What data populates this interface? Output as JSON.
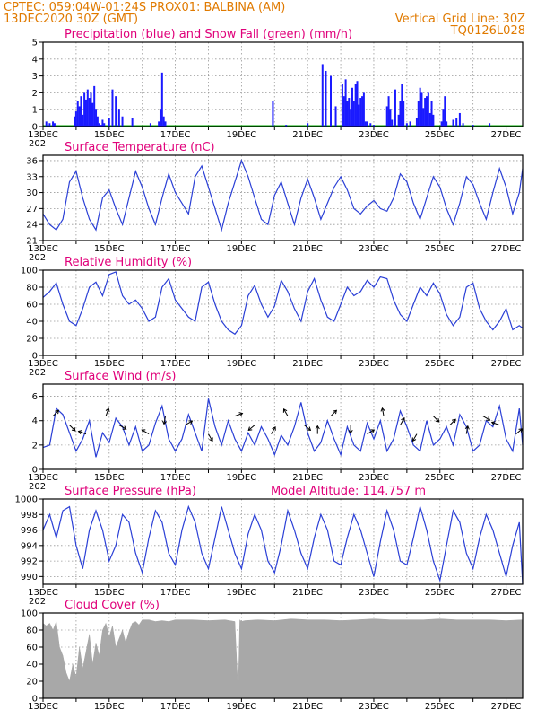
{
  "header": {
    "line1_left": "CPTEC:   059:04W-01:24S   PROX01: BALBINA (AM)",
    "line2_left": "13DEC2020 30Z (GMT)",
    "line2_right": "Vertical Grid Line: 30Z",
    "line3_right": "TQ0126L028"
  },
  "colors": {
    "header": "#e07a00",
    "title": "#e0007a",
    "precip": "#1a1aff",
    "snow": "#00aa00",
    "line": "#2a3fd6",
    "cloud": "#a8a8a8"
  },
  "x_axis": {
    "labels": [
      "13DEC",
      "15DEC",
      "17DEC",
      "19DEC",
      "21DEC",
      "23DEC",
      "25DEC",
      "27DEC"
    ],
    "label_positions_day": [
      0,
      2,
      4,
      6,
      8,
      10,
      12,
      14
    ],
    "stub": "202"
  },
  "chart_data": [
    {
      "id": "precip",
      "type": "bar",
      "title": "Precipitation (blue) and Snow Fall (green) (mm/h)",
      "ylim": [
        0,
        5
      ],
      "yticks": [
        0,
        1,
        2,
        3,
        4,
        5
      ],
      "x_range_days": [
        0,
        14.5
      ],
      "bar_width_days": 0.03,
      "x": [
        0.1,
        0.2,
        0.3,
        0.35,
        0.95,
        1.0,
        1.05,
        1.1,
        1.15,
        1.2,
        1.25,
        1.3,
        1.35,
        1.4,
        1.45,
        1.5,
        1.55,
        1.6,
        1.65,
        1.7,
        1.75,
        1.8,
        1.85,
        2.0,
        2.1,
        2.2,
        2.3,
        2.4,
        2.7,
        3.25,
        3.5,
        3.55,
        3.6,
        3.65,
        3.7,
        6.95,
        7.35,
        8.0,
        8.45,
        8.55,
        8.7,
        8.85,
        9.05,
        9.1,
        9.15,
        9.2,
        9.25,
        9.3,
        9.35,
        9.4,
        9.45,
        9.5,
        9.55,
        9.6,
        9.65,
        9.7,
        9.75,
        9.8,
        9.9,
        10.0,
        10.4,
        10.45,
        10.5,
        10.55,
        10.65,
        10.75,
        10.8,
        10.85,
        10.9,
        11.0,
        11.1,
        11.3,
        11.35,
        11.4,
        11.45,
        11.5,
        11.55,
        11.6,
        11.65,
        11.7,
        11.75,
        11.8,
        12.05,
        12.1,
        12.15,
        12.2,
        12.4,
        12.5,
        12.6,
        12.7,
        13.0,
        13.5
      ],
      "values": [
        0.3,
        0.2,
        0.3,
        0.2,
        0.6,
        0.9,
        1.5,
        1.2,
        1.8,
        0.7,
        2.0,
        1.6,
        2.2,
        1.7,
        2.0,
        1.4,
        2.4,
        1.0,
        0.6,
        0.2,
        0.1,
        0.4,
        0.2,
        0.5,
        2.2,
        1.8,
        1.0,
        0.6,
        0.5,
        0.2,
        0.3,
        1.0,
        3.2,
        0.6,
        0.3,
        1.5,
        0.1,
        0.2,
        3.7,
        3.3,
        3.0,
        1.2,
        2.5,
        1.8,
        2.8,
        1.5,
        1.7,
        1.0,
        2.3,
        1.5,
        2.5,
        2.7,
        1.3,
        1.7,
        1.8,
        2.0,
        0.3,
        0.3,
        0.2,
        0.1,
        1.2,
        1.8,
        1.0,
        0.4,
        2.2,
        0.7,
        1.5,
        2.5,
        1.5,
        0.2,
        0.3,
        0.5,
        1.5,
        2.3,
        2.0,
        1.1,
        1.7,
        1.8,
        2.0,
        0.8,
        1.5,
        0.7,
        0.3,
        1.0,
        1.8,
        0.3,
        0.4,
        0.5,
        0.8,
        0.2,
        0.1,
        0.2
      ],
      "snow_values_mm_h": 0.05
    },
    {
      "id": "temp",
      "type": "line",
      "title": "Surface Temperature (nC)",
      "ylim": [
        21,
        37
      ],
      "yticks": [
        21,
        24,
        27,
        30,
        33,
        36
      ],
      "x_range_days": [
        0,
        14.5
      ],
      "x": [
        0,
        0.2,
        0.4,
        0.6,
        0.8,
        1.0,
        1.2,
        1.4,
        1.6,
        1.8,
        2.0,
        2.2,
        2.4,
        2.6,
        2.8,
        3.0,
        3.2,
        3.4,
        3.6,
        3.8,
        4.0,
        4.2,
        4.4,
        4.6,
        4.8,
        5.0,
        5.2,
        5.4,
        5.6,
        5.8,
        6.0,
        6.2,
        6.4,
        6.6,
        6.8,
        7.0,
        7.2,
        7.4,
        7.6,
        7.8,
        8.0,
        8.2,
        8.4,
        8.6,
        8.8,
        9.0,
        9.2,
        9.4,
        9.6,
        9.8,
        10.0,
        10.2,
        10.4,
        10.6,
        10.8,
        11.0,
        11.2,
        11.4,
        11.6,
        11.8,
        12.0,
        12.2,
        12.4,
        12.6,
        12.8,
        13.0,
        13.2,
        13.4,
        13.6,
        13.8,
        14.0,
        14.2,
        14.4,
        14.5
      ],
      "values": [
        26,
        24,
        23,
        25,
        32,
        34,
        29,
        25,
        23,
        29,
        30.5,
        27,
        24,
        29,
        34,
        31,
        27,
        24,
        29,
        33.5,
        30,
        28,
        26,
        33,
        35,
        31,
        27,
        23,
        28,
        32,
        36,
        33,
        29,
        25,
        24,
        29.5,
        32,
        28,
        24,
        29,
        32.5,
        29,
        25,
        28,
        31,
        33,
        30.5,
        27,
        26,
        27.5,
        28.5,
        27,
        26.5,
        29,
        33.5,
        32,
        28,
        25,
        29,
        33,
        31,
        27,
        24,
        28,
        33,
        31.5,
        28,
        25,
        30,
        34.5,
        31,
        26,
        30,
        34.5
      ]
    },
    {
      "id": "rh",
      "type": "line",
      "title": "Relative Humidity (%)",
      "ylim": [
        0,
        100
      ],
      "yticks": [
        0,
        20,
        40,
        60,
        80,
        100
      ],
      "x_range_days": [
        0,
        14.5
      ],
      "x": [
        0,
        0.2,
        0.4,
        0.6,
        0.8,
        1.0,
        1.2,
        1.4,
        1.6,
        1.8,
        2.0,
        2.2,
        2.4,
        2.6,
        2.8,
        3.0,
        3.2,
        3.4,
        3.6,
        3.8,
        4.0,
        4.2,
        4.4,
        4.6,
        4.8,
        5.0,
        5.2,
        5.4,
        5.6,
        5.8,
        6.0,
        6.2,
        6.4,
        6.6,
        6.8,
        7.0,
        7.2,
        7.4,
        7.6,
        7.8,
        8.0,
        8.2,
        8.4,
        8.6,
        8.8,
        9.0,
        9.2,
        9.4,
        9.6,
        9.8,
        10.0,
        10.2,
        10.4,
        10.6,
        10.8,
        11.0,
        11.2,
        11.4,
        11.6,
        11.8,
        12.0,
        12.2,
        12.4,
        12.6,
        12.8,
        13.0,
        13.2,
        13.4,
        13.6,
        13.8,
        14.0,
        14.2,
        14.4,
        14.5
      ],
      "values": [
        68,
        75,
        85,
        60,
        40,
        35,
        55,
        80,
        86,
        70,
        95,
        98,
        70,
        60,
        65,
        55,
        40,
        45,
        80,
        90,
        65,
        55,
        45,
        40,
        80,
        86,
        60,
        40,
        30,
        25,
        35,
        70,
        82,
        60,
        45,
        58,
        88,
        75,
        55,
        40,
        75,
        90,
        65,
        45,
        40,
        60,
        80,
        70,
        75,
        88,
        80,
        92,
        90,
        65,
        48,
        40,
        60,
        80,
        70,
        85,
        72,
        48,
        35,
        45,
        80,
        85,
        55,
        40,
        30,
        40,
        55,
        30,
        35,
        32
      ]
    },
    {
      "id": "wind",
      "type": "line",
      "title": "Surface Wind (m/s)",
      "ylim": [
        0,
        7
      ],
      "yticks": [
        0,
        2,
        4,
        6
      ],
      "x_range_days": [
        0,
        14.5
      ],
      "x": [
        0,
        0.2,
        0.4,
        0.6,
        0.8,
        1.0,
        1.2,
        1.4,
        1.6,
        1.8,
        2.0,
        2.2,
        2.4,
        2.6,
        2.8,
        3.0,
        3.2,
        3.4,
        3.6,
        3.8,
        4.0,
        4.2,
        4.4,
        4.6,
        4.8,
        5.0,
        5.2,
        5.4,
        5.6,
        5.8,
        6.0,
        6.2,
        6.4,
        6.6,
        6.8,
        7.0,
        7.2,
        7.4,
        7.6,
        7.8,
        8.0,
        8.2,
        8.4,
        8.6,
        8.8,
        9.0,
        9.2,
        9.4,
        9.6,
        9.8,
        10.0,
        10.2,
        10.4,
        10.6,
        10.8,
        11.0,
        11.2,
        11.4,
        11.6,
        11.8,
        12.0,
        12.2,
        12.4,
        12.6,
        12.8,
        13.0,
        13.2,
        13.4,
        13.6,
        13.8,
        14.0,
        14.2,
        14.4,
        14.5
      ],
      "values": [
        1.8,
        2.0,
        5.0,
        4.5,
        3.0,
        1.5,
        2.5,
        4.0,
        1.0,
        3.0,
        2.2,
        4.2,
        3.5,
        2.0,
        3.5,
        1.5,
        2.0,
        3.8,
        5.2,
        2.5,
        1.5,
        2.5,
        4.5,
        3.0,
        1.5,
        5.8,
        3.5,
        2.0,
        4.0,
        2.5,
        1.5,
        3.0,
        2.0,
        3.5,
        2.5,
        1.2,
        2.8,
        2.0,
        3.5,
        5.5,
        3.0,
        1.5,
        2.2,
        4.0,
        2.5,
        1.2,
        3.5,
        2.0,
        1.5,
        3.8,
        2.5,
        4.0,
        1.5,
        2.5,
        4.8,
        3.5,
        2.0,
        1.5,
        4.0,
        2.0,
        2.5,
        3.5,
        2.0,
        4.5,
        3.5,
        1.5,
        2.0,
        4.0,
        3.5,
        5.2,
        2.5,
        1.5,
        5.0,
        2.0
      ],
      "arrows_x": [
        0.3,
        0.8,
        1.3,
        1.9,
        2.3,
        3.2,
        3.7,
        4.3,
        5.0,
        5.8,
        6.4,
        6.9,
        7.4,
        7.9,
        8.3,
        8.7,
        9.3,
        9.8,
        10.3,
        10.8,
        11.3,
        11.8,
        12.3,
        12.8,
        13.3,
        13.8,
        14.3
      ],
      "arrows_angle_deg": [
        -45,
        45,
        200,
        -70,
        30,
        -150,
        100,
        -30,
        60,
        -20,
        140,
        -60,
        -120,
        40,
        -90,
        -45,
        90,
        -30,
        -100,
        -60,
        120,
        45,
        -45,
        -80,
        30,
        -160,
        -40
      ]
    },
    {
      "id": "pressure",
      "type": "line",
      "title": "Surface Pressure (hPa)",
      "subtitle": "Model Altitude: 114.757  m",
      "ylim": [
        989,
        1000
      ],
      "yticks": [
        990,
        992,
        994,
        996,
        998,
        1000
      ],
      "x_range_days": [
        0,
        14.5
      ],
      "x": [
        0,
        0.2,
        0.4,
        0.6,
        0.8,
        1.0,
        1.2,
        1.4,
        1.6,
        1.8,
        2.0,
        2.2,
        2.4,
        2.6,
        2.8,
        3.0,
        3.2,
        3.4,
        3.6,
        3.8,
        4.0,
        4.2,
        4.4,
        4.6,
        4.8,
        5.0,
        5.2,
        5.4,
        5.6,
        5.8,
        6.0,
        6.2,
        6.4,
        6.6,
        6.8,
        7.0,
        7.2,
        7.4,
        7.6,
        7.8,
        8.0,
        8.2,
        8.4,
        8.6,
        8.8,
        9.0,
        9.2,
        9.4,
        9.6,
        9.8,
        10.0,
        10.2,
        10.4,
        10.6,
        10.8,
        11.0,
        11.2,
        11.4,
        11.6,
        11.8,
        12.0,
        12.2,
        12.4,
        12.6,
        12.8,
        13.0,
        13.2,
        13.4,
        13.6,
        13.8,
        14.0,
        14.2,
        14.4,
        14.5
      ],
      "values": [
        996,
        998,
        995,
        998.5,
        999,
        994,
        991,
        996,
        998.5,
        996,
        992,
        994,
        998,
        997,
        993,
        990.5,
        995,
        998.5,
        997,
        993,
        991.5,
        996,
        999,
        997,
        993,
        991,
        995,
        999,
        996,
        993,
        991,
        995.5,
        998,
        996,
        992,
        990.5,
        994,
        998.5,
        996,
        993,
        991,
        995,
        998,
        996,
        992,
        991.5,
        995,
        998,
        996,
        993,
        990,
        994.5,
        998.5,
        996,
        992,
        991.5,
        995,
        999,
        996,
        992,
        989.5,
        994,
        998.5,
        997,
        993,
        991,
        995,
        998,
        996,
        993,
        990,
        994,
        997,
        989
      ]
    },
    {
      "id": "cloud",
      "type": "area",
      "title": "Cloud Cover (%)",
      "ylim": [
        0,
        100
      ],
      "yticks": [
        0,
        20,
        40,
        60,
        80,
        100
      ],
      "x_range_days": [
        0,
        14.5
      ],
      "x": [
        0,
        0.1,
        0.2,
        0.3,
        0.4,
        0.5,
        0.6,
        0.7,
        0.8,
        0.9,
        1.0,
        1.1,
        1.2,
        1.3,
        1.4,
        1.5,
        1.6,
        1.7,
        1.8,
        1.9,
        2.0,
        2.1,
        2.2,
        2.3,
        2.4,
        2.5,
        2.6,
        2.7,
        2.8,
        2.9,
        3.0,
        3.2,
        3.4,
        3.6,
        3.8,
        4.0,
        4.5,
        5.0,
        5.5,
        5.8,
        5.9,
        5.95,
        6.0,
        6.1,
        6.5,
        7.0,
        7.5,
        8.0,
        8.5,
        9.0,
        9.5,
        10.0,
        10.5,
        11.0,
        11.5,
        12.0,
        12.5,
        13.0,
        13.5,
        14.0,
        14.5
      ],
      "values": [
        88,
        85,
        88,
        80,
        90,
        60,
        50,
        30,
        20,
        40,
        25,
        60,
        35,
        55,
        75,
        40,
        65,
        50,
        80,
        88,
        72,
        85,
        60,
        70,
        80,
        65,
        78,
        88,
        90,
        86,
        92,
        92,
        90,
        91,
        90,
        92,
        92,
        91,
        92,
        90,
        5,
        92,
        90,
        91,
        92,
        91,
        93,
        92,
        92,
        91,
        92,
        93,
        92,
        92,
        92,
        93,
        92,
        92,
        92,
        91,
        92
      ]
    }
  ]
}
